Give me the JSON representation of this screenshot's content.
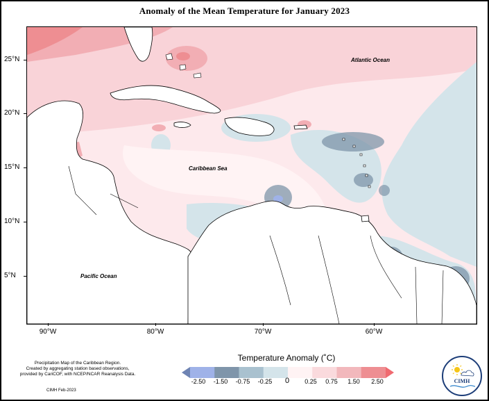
{
  "title": "Anomaly of the Mean Temperature for January 2023",
  "axes": {
    "y_labels": [
      "25°N",
      "20°N",
      "15°N",
      "10°N",
      "5°N"
    ],
    "x_labels": [
      "90°W",
      "80°W",
      "70°W",
      "60°W"
    ]
  },
  "regions": {
    "atlantic": "Atlantic Ocean",
    "caribbean": "Caribbean Sea",
    "pacific": "Pacific Ocean"
  },
  "legend": {
    "title": "Temperature Anomaly (˚C)",
    "labels": [
      "-2.50",
      "-1.50",
      "-0.75",
      "-0.25",
      "0",
      "0.25",
      "0.75",
      "1.50",
      "2.50"
    ],
    "colors": [
      "#6f84b3",
      "#9fb2e8",
      "#7f95aa",
      "#a9c1cf",
      "#d4e4ea",
      "#fff3f4",
      "#fadadd",
      "#f2b8bc",
      "#ee8e92",
      "#f06a70"
    ]
  },
  "footer": {
    "description_lines": [
      "Precipitation Map of the Caribbean Region.",
      "Created by aggregating station based observations,",
      "provided by CariCOF, with NCEP/NCAR Reanalysis Data."
    ],
    "credit": "CIMH Feb-2023"
  },
  "logo": {
    "text": "CIMH"
  }
}
